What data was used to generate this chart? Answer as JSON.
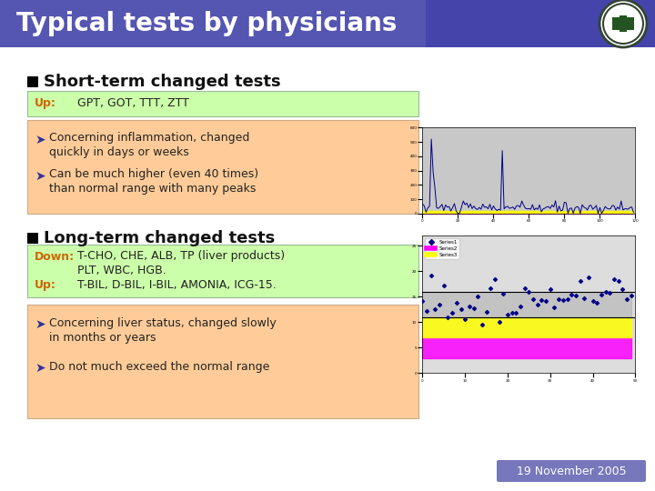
{
  "title": "Typical tests by physicians",
  "title_bg": "#5555aa",
  "title_color": "#ffffff",
  "bg_color": "#ffffff",
  "section1_header": "Short-term changed tests",
  "section1_box1_label": "Up:",
  "section1_box1_label_color": "#cc6600",
  "section1_box1_text": "GPT, GOT, TTT, ZTT",
  "section1_box1_bg": "#ccffaa",
  "section1_box2_bg": "#ffcc99",
  "section1_bullet1_line1": "Concerning inflammation, changed",
  "section1_bullet1_line2": "quickly in days or weeks",
  "section1_bullet2_line1": "Can be much higher (even 40 times)",
  "section1_bullet2_line2": "than normal range with many peaks",
  "section2_header": "Long-term changed tests",
  "section2_box1_bg": "#ccffaa",
  "section2_box2_bg": "#ffcc99",
  "section2_down_label": "Down:",
  "section2_down_text1": "T-CHO, CHE, ALB, TP (liver products)",
  "section2_down_text2": "PLT, WBC, HGB.",
  "section2_up_label": "Up:",
  "section2_up_text": "T-BIL, D-BIL, I-BIL, AMONIA, ICG-15.",
  "section2_label_color": "#cc6600",
  "section2_bullet1_line1": "Concerning liver status, changed slowly",
  "section2_bullet1_line2": "in months or years",
  "section2_bullet2": "Do not much exceed the normal range",
  "footer_text": "19 November 2005",
  "footer_bg": "#7777bb",
  "footer_color": "#ffffff",
  "bullet_color": "#333399",
  "header_color": "#111111",
  "text_color": "#222222",
  "title_fontsize": 20,
  "header_fontsize": 13,
  "body_fontsize": 9,
  "label_fontsize": 9
}
